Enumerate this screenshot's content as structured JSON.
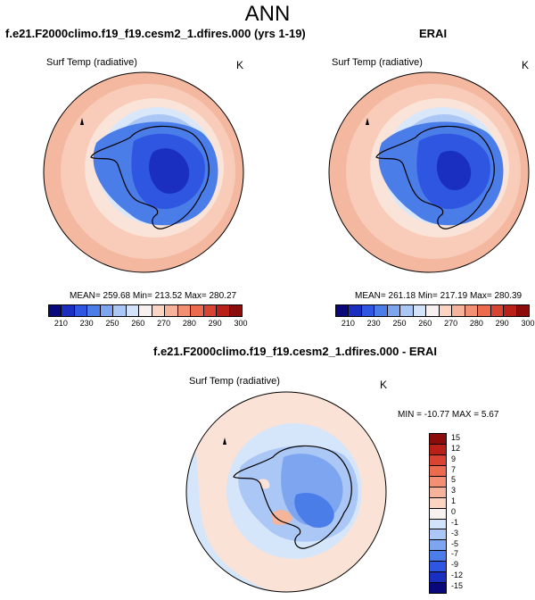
{
  "title": "ANN",
  "panels": [
    {
      "title": "f.e21.F2000climo.f19_f19.cesm2_1.dfires.000 (yrs 1-19)",
      "variable": "Surf Temp (radiative)",
      "units": "K",
      "stats": "MEAN= 259.68  Min= 213.52  Max= 280.27"
    },
    {
      "title": "ERAI",
      "variable": "Surf Temp (radiative)",
      "units": "K",
      "stats": "MEAN= 261.18  Min= 217.19  Max= 280.39"
    },
    {
      "title": "f.e21.F2000climo.f19_f19.cesm2_1.dfires.000 - ERAI",
      "variable": "Surf Temp (radiative)",
      "units": "K",
      "stats": "MIN = -10.77  MAX =   5.67"
    }
  ],
  "temp_colorbar": {
    "labels": [
      "210",
      "230",
      "250",
      "260",
      "270",
      "280",
      "290",
      "300"
    ],
    "colors": [
      "#08087a",
      "#1a2fbf",
      "#2e56e0",
      "#4a7de8",
      "#7ea6f0",
      "#aac7f5",
      "#d2e3fa",
      "#f7f2ef",
      "#fbd4c2",
      "#f7b29b",
      "#f38f73",
      "#ec6a4d",
      "#d84431",
      "#b82018",
      "#8a0d0b"
    ]
  },
  "diff_colorbar": {
    "labels": [
      "15",
      "12",
      "9",
      "7",
      "5",
      "3",
      "1",
      "0",
      "-1",
      "-3",
      "-5",
      "-7",
      "-9",
      "-12",
      "-15"
    ],
    "colors": [
      "#8a0d0b",
      "#b82018",
      "#d84431",
      "#ec6a4d",
      "#f38f73",
      "#f7b29b",
      "#fbd4c2",
      "#f7f2ef",
      "#d2e3fa",
      "#aac7f5",
      "#7ea6f0",
      "#4a7de8",
      "#2e56e0",
      "#1a2fbf",
      "#08087a"
    ]
  }
}
